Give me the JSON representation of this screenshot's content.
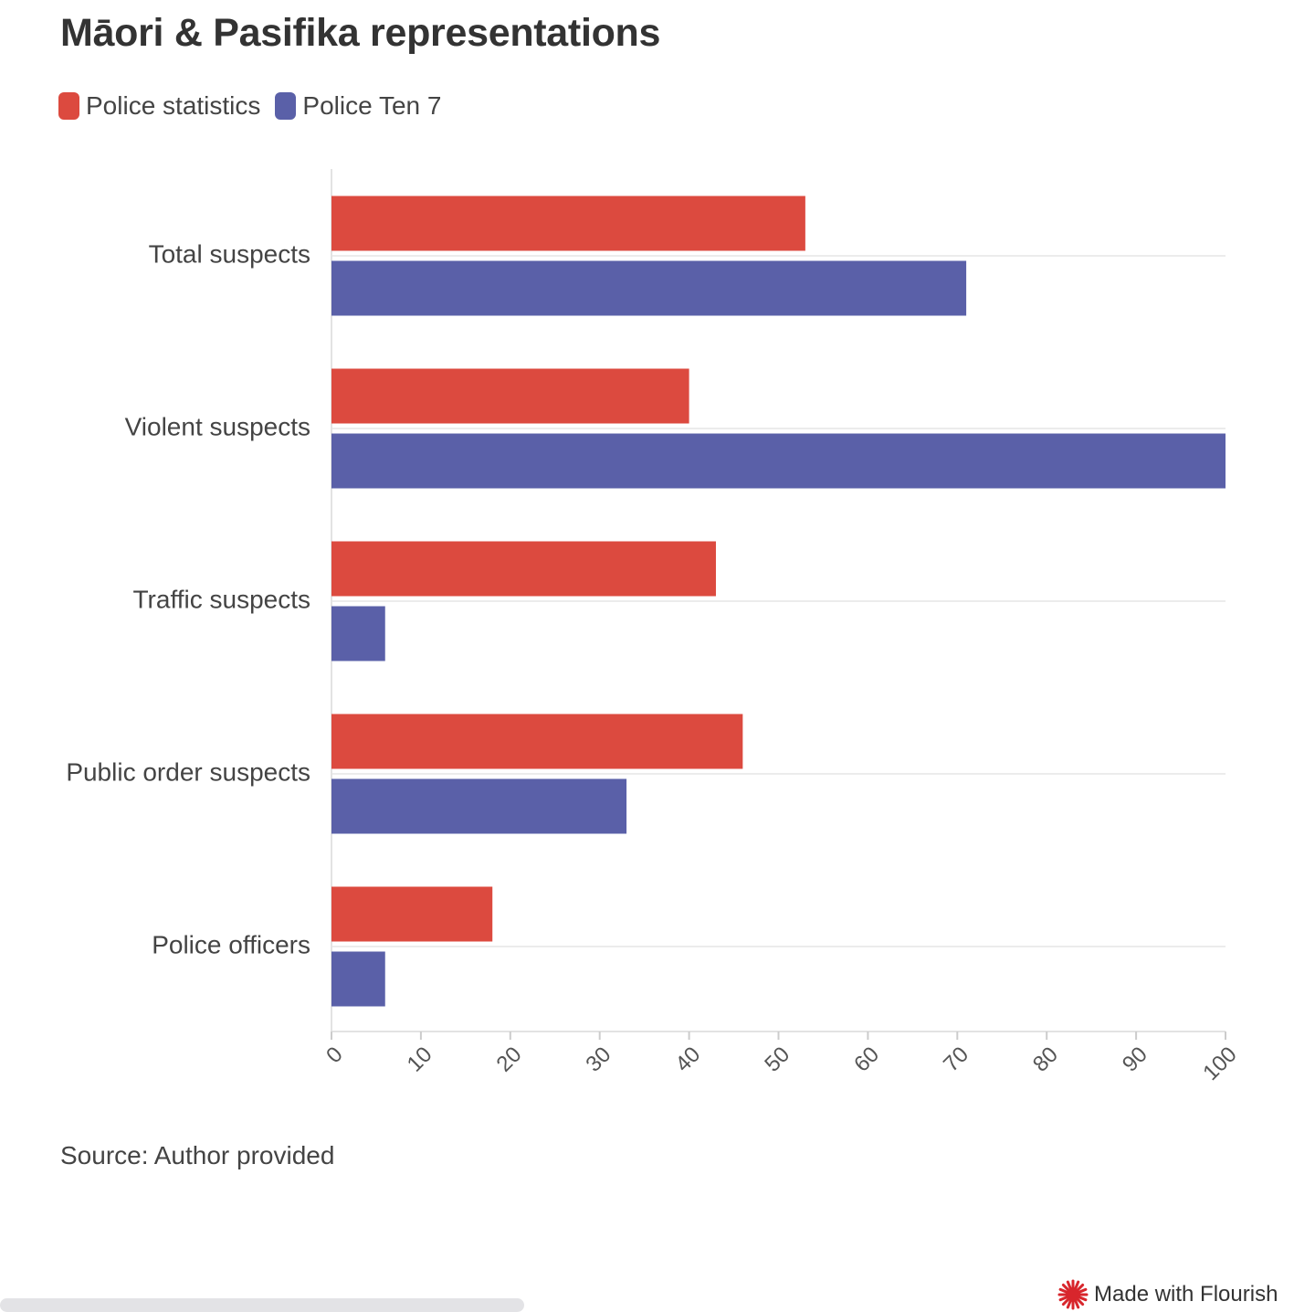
{
  "chart_data": {
    "type": "bar",
    "orientation": "horizontal",
    "title": "Māori & Pasifika representations",
    "categories": [
      "Total suspects",
      "Violent suspects",
      "Traffic suspects",
      "Public order suspects",
      "Police officers"
    ],
    "series": [
      {
        "name": "Police statistics",
        "color": "#dc4a3f",
        "values": [
          53,
          40,
          43,
          46,
          18
        ]
      },
      {
        "name": "Police Ten 7",
        "color": "#5a60a8",
        "values": [
          71,
          100,
          6,
          33,
          6
        ]
      }
    ],
    "xlim": [
      0,
      100
    ],
    "xticks": [
      "0",
      "10",
      "20",
      "30",
      "40",
      "50",
      "60",
      "70",
      "80",
      "90",
      "100"
    ],
    "xlabel": "",
    "ylabel": "",
    "grid": true,
    "legend": "top-left"
  },
  "legend_colors": {
    "police_statistics": "#dc4a3f",
    "police_ten_7": "#5a60a8"
  },
  "footer": {
    "source": "Source: Author provided",
    "credit": "Made with Flourish",
    "credit_icon": "flourish-logo-icon"
  }
}
